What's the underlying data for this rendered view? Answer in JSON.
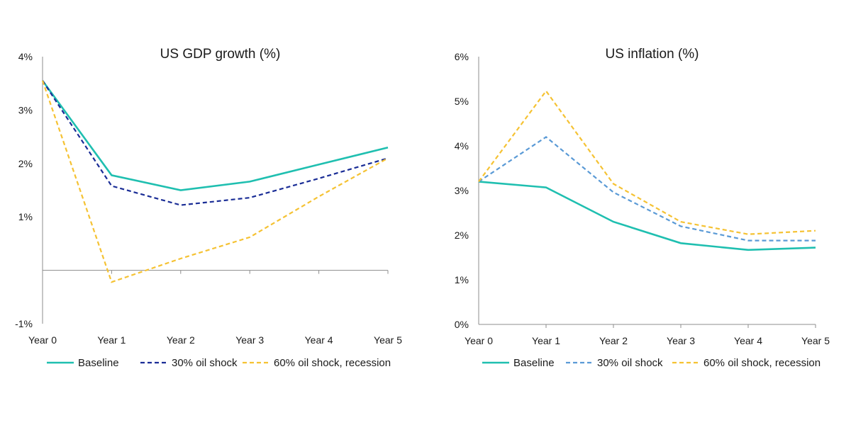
{
  "chart_data": [
    {
      "type": "line",
      "title": "US GDP growth (%)",
      "categories": [
        "Year 0",
        "Year 1",
        "Year 2",
        "Year 3",
        "Year 4",
        "Year 5"
      ],
      "ylim": [
        -1,
        4
      ],
      "yticks": [
        -1,
        1,
        2,
        3,
        4
      ],
      "ytick_labels": [
        "-1%",
        "1%",
        "2%",
        "3%",
        "4%"
      ],
      "zero_line": true,
      "grid": false,
      "legend_position": "bottom",
      "series": [
        {
          "name": "Baseline",
          "values": [
            3.55,
            1.78,
            1.5,
            1.66,
            1.98,
            2.3
          ],
          "color": "#1fbfb0",
          "dash": "solid"
        },
        {
          "name": "30% oil shock",
          "values": [
            3.55,
            1.58,
            1.22,
            1.36,
            1.72,
            2.1
          ],
          "color": "#1a2d96",
          "dash": "dashed"
        },
        {
          "name": "60% oil shock, recession",
          "values": [
            3.55,
            -0.22,
            0.22,
            0.62,
            1.38,
            2.1
          ],
          "color": "#f5c233",
          "dash": "dashed"
        }
      ]
    },
    {
      "type": "line",
      "title": "US inflation (%)",
      "categories": [
        "Year 0",
        "Year 1",
        "Year 2",
        "Year 3",
        "Year 4",
        "Year 5"
      ],
      "ylim": [
        0,
        6
      ],
      "yticks": [
        0,
        1,
        2,
        3,
        4,
        5,
        6
      ],
      "ytick_labels": [
        "0%",
        "1%",
        "2%",
        "3%",
        "4%",
        "5%",
        "6%"
      ],
      "zero_line": false,
      "grid": false,
      "legend_position": "bottom",
      "series": [
        {
          "name": "Baseline",
          "values": [
            3.2,
            3.07,
            2.3,
            1.82,
            1.67,
            1.72
          ],
          "color": "#1fbfb0",
          "dash": "solid"
        },
        {
          "name": "30% oil shock",
          "values": [
            3.2,
            4.2,
            2.96,
            2.2,
            1.88,
            1.88
          ],
          "color": "#5a9ad6",
          "dash": "dashed"
        },
        {
          "name": "60% oil shock, recession",
          "values": [
            3.2,
            5.23,
            3.15,
            2.3,
            2.02,
            2.1
          ],
          "color": "#f5c233",
          "dash": "dashed"
        }
      ]
    }
  ]
}
